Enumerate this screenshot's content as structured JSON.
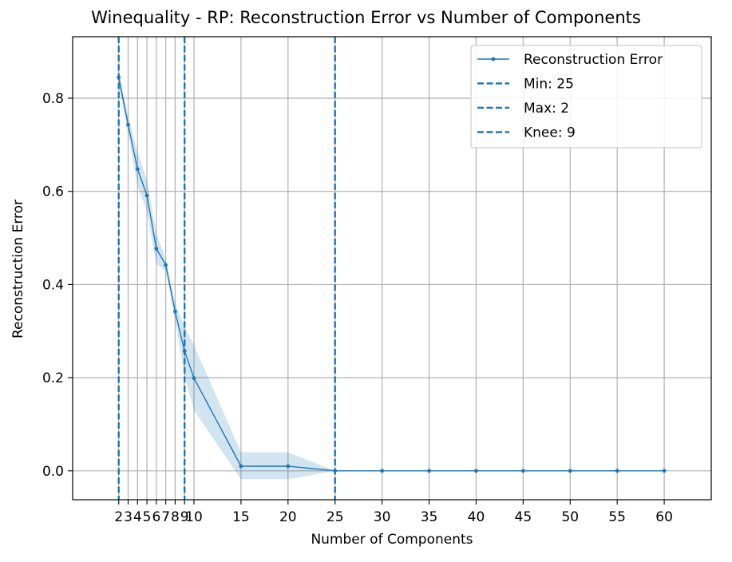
{
  "chart_data": {
    "type": "line",
    "title": "Winequality - RP: Reconstruction Error vs Number of Components",
    "xlabel": "Number of Components",
    "ylabel": "Reconstruction Error",
    "xlim": [
      -2.9,
      65
    ],
    "ylim": [
      -0.062,
      0.932
    ],
    "x_ticks": [
      2,
      3,
      4,
      5,
      6,
      7,
      8,
      9,
      10,
      15,
      20,
      25,
      30,
      35,
      40,
      45,
      50,
      55,
      60
    ],
    "y_ticks": [
      0.0,
      0.2,
      0.4,
      0.6,
      0.8
    ],
    "y_tick_labels": [
      "0.0",
      "0.2",
      "0.4",
      "0.6",
      "0.8"
    ],
    "grid": true,
    "legend_position": "top-right",
    "series": [
      {
        "name": "Reconstruction Error",
        "color": "#1f77b4",
        "x": [
          2,
          3,
          4,
          5,
          6,
          7,
          8,
          9,
          10,
          15,
          20,
          25,
          30,
          35,
          40,
          45,
          50,
          55,
          60
        ],
        "y": [
          0.845,
          0.743,
          0.648,
          0.591,
          0.477,
          0.442,
          0.342,
          0.257,
          0.199,
          0.01,
          0.01,
          0.0,
          0.0,
          0.0,
          0.0,
          0.0,
          0.0,
          0.0,
          0.0
        ],
        "y_upper": [
          0.862,
          0.76,
          0.685,
          0.625,
          0.51,
          0.455,
          0.36,
          0.31,
          0.27,
          0.04,
          0.04,
          0.0,
          0.0,
          0.0,
          0.0,
          0.0,
          0.0,
          0.0,
          0.0
        ],
        "y_lower": [
          0.828,
          0.726,
          0.611,
          0.557,
          0.444,
          0.429,
          0.324,
          0.204,
          0.13,
          -0.018,
          -0.018,
          0.0,
          0.0,
          0.0,
          0.0,
          0.0,
          0.0,
          0.0,
          0.0
        ]
      }
    ],
    "vlines": [
      {
        "name": "Min: 25",
        "x": 25,
        "color": "#1f77b4",
        "style": "dashed"
      },
      {
        "name": "Max: 2",
        "x": 2,
        "color": "#1f77b4",
        "style": "dashed"
      },
      {
        "name": "Knee: 9",
        "x": 9,
        "color": "#1f77b4",
        "style": "dashed"
      }
    ]
  }
}
